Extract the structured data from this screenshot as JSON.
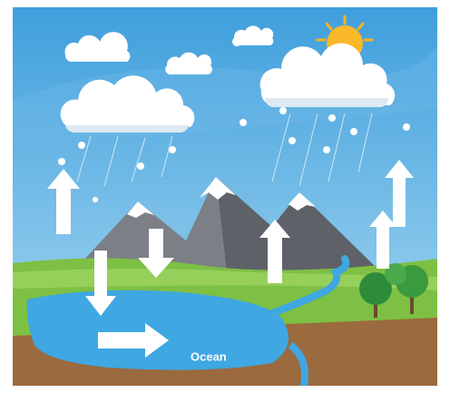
{
  "labels": {
    "ocean": "Ocean"
  }
}
